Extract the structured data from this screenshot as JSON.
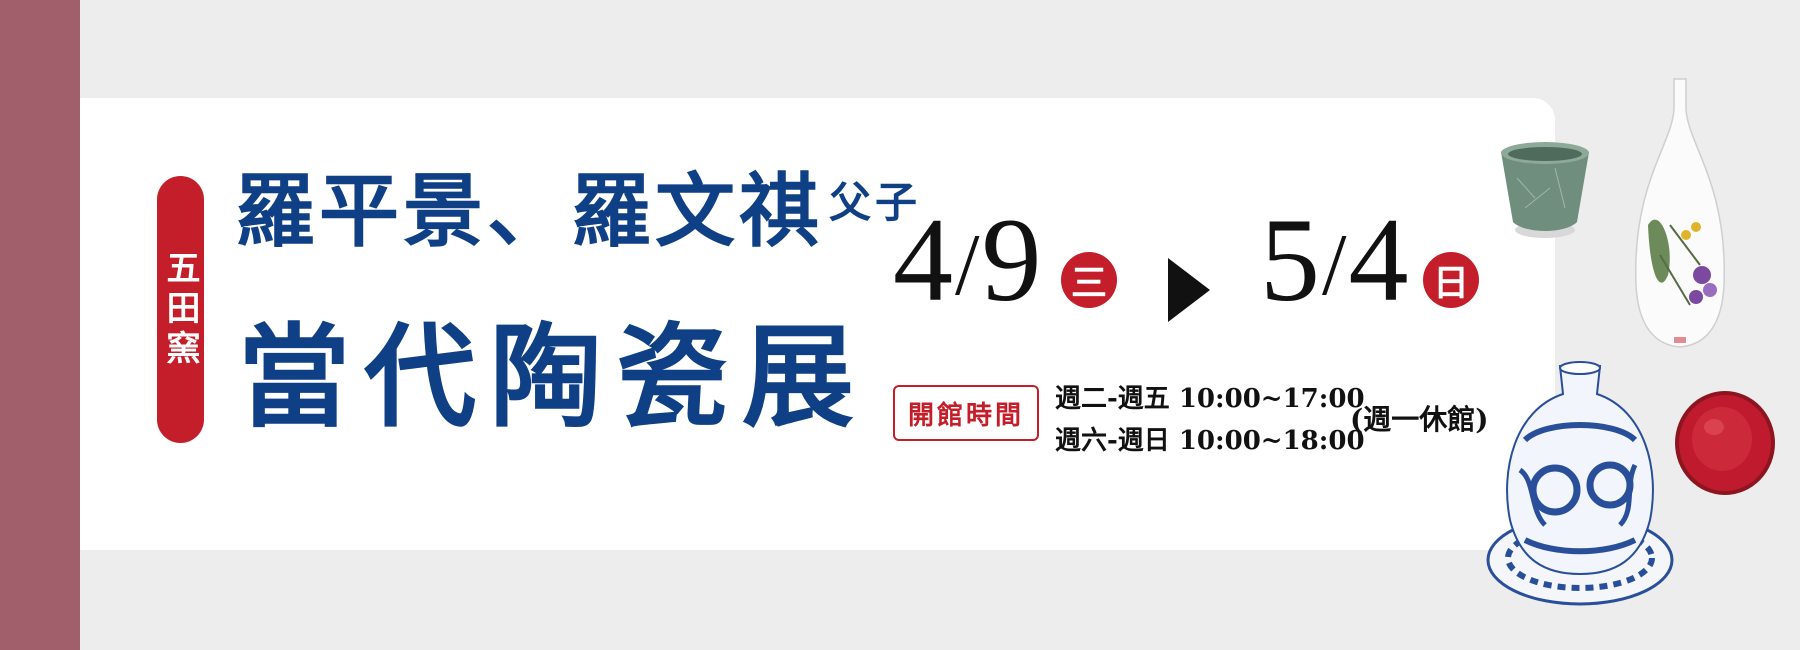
{
  "brand": {
    "seal_text": "五田窯"
  },
  "title": {
    "line1": "羅平景、羅文祺",
    "line1_suffix": "父子",
    "line2": "當代陶瓷展"
  },
  "dates": {
    "start_month": "4",
    "start_day": "9",
    "start_weekday": "三",
    "end_month": "5",
    "end_day": "4",
    "end_weekday": "日"
  },
  "hours": {
    "label": "開館時間",
    "weekday": "週二-週五 10:00~17:00",
    "weekend": "週六-週日 10:00~18:00",
    "closed": "(週一休館)"
  },
  "colors": {
    "left_bar": "#a05f6a",
    "title_blue": "#0f3f85",
    "accent_red": "#c41e2a",
    "background": "#ededed"
  }
}
